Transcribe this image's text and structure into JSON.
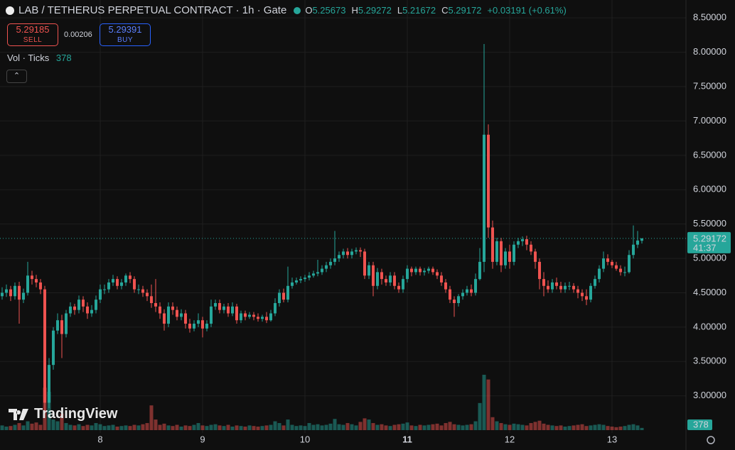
{
  "chart_data": {
    "type": "candlestick",
    "title": "LAB / TETHERUS PERPETUAL CONTRACT · 1h · Gate",
    "ohlc_labels": [
      "O",
      "H",
      "L",
      "C"
    ],
    "change": "+0.03191 (+0.61%)",
    "sell": {
      "price": 5.29185,
      "label": "SELL"
    },
    "spread": 0.00206,
    "buy": {
      "price": 5.29391,
      "label": "BUY"
    },
    "volume_label": "Vol · Ticks",
    "countdown": "41:37",
    "watermark": "TradingView",
    "up_color": "#26a69a",
    "down_color": "#ef5350",
    "ylim": [
      2.46,
      8.76
    ],
    "yticks": [
      {
        "value": 3,
        "label": "3.00000"
      },
      {
        "value": 3.5,
        "label": "3.50000"
      },
      {
        "value": 4,
        "label": "4.00000"
      },
      {
        "value": 4.5,
        "label": "4.50000"
      },
      {
        "value": 5,
        "label": "5.00000"
      },
      {
        "value": 5.5,
        "label": "5.50000"
      },
      {
        "value": 6,
        "label": "6.00000"
      },
      {
        "value": 6.5,
        "label": "6.50000"
      },
      {
        "value": 7,
        "label": "7.00000"
      },
      {
        "value": 7.5,
        "label": "7.50000"
      },
      {
        "value": 8,
        "label": "8.00000"
      },
      {
        "value": 8.5,
        "label": "8.50000"
      }
    ],
    "grid": true,
    "categories": [
      null,
      null,
      null,
      null,
      null,
      null,
      null,
      null,
      null,
      null,
      null,
      null,
      null,
      null,
      null,
      null,
      null,
      null,
      null,
      null,
      null,
      null,
      null,
      "8",
      null,
      null,
      null,
      null,
      null,
      null,
      null,
      null,
      null,
      null,
      null,
      null,
      null,
      null,
      null,
      null,
      null,
      null,
      null,
      null,
      null,
      null,
      null,
      "9",
      null,
      null,
      null,
      null,
      null,
      null,
      null,
      null,
      null,
      null,
      null,
      null,
      null,
      null,
      null,
      null,
      null,
      null,
      null,
      null,
      null,
      null,
      null,
      "10",
      null,
      null,
      null,
      null,
      null,
      null,
      null,
      null,
      null,
      null,
      null,
      null,
      null,
      null,
      null,
      null,
      null,
      null,
      null,
      null,
      null,
      null,
      null,
      "11",
      null,
      null,
      null,
      null,
      null,
      null,
      null,
      null,
      null,
      null,
      null,
      null,
      null,
      null,
      null,
      null,
      null,
      null,
      null,
      null,
      null,
      null,
      null,
      "12",
      null,
      null,
      null,
      null,
      null,
      null,
      null,
      null,
      null,
      null,
      null,
      null,
      null,
      null,
      null,
      null,
      null,
      null,
      null,
      null,
      null,
      null,
      null,
      "13",
      null,
      null,
      null,
      null,
      null,
      null,
      null
    ],
    "open": [
      4.45,
      4.5,
      4.55,
      4.45,
      4.6,
      4.4,
      4.5,
      4.75,
      4.7,
      4.65,
      4.55,
      2.9,
      3.45,
      3.95,
      4.1,
      3.9,
      4.2,
      4.3,
      4.25,
      4.4,
      4.3,
      4.2,
      4.25,
      4.4,
      4.55,
      4.55,
      4.65,
      4.7,
      4.6,
      4.65,
      4.75,
      4.7,
      4.55,
      4.55,
      4.5,
      4.45,
      4.35,
      4.3,
      4.2,
      4.05,
      4.3,
      4.25,
      4.15,
      4.2,
      4.05,
      3.98,
      4.05,
      4.1,
      3.98,
      4.05,
      4.3,
      4.35,
      4.25,
      4.3,
      4.2,
      4.3,
      4.1,
      4.2,
      4.15,
      4.18,
      4.15,
      4.12,
      4.15,
      4.1,
      4.2,
      4.35,
      4.5,
      4.4,
      4.6,
      4.65,
      4.68,
      4.7,
      4.72,
      4.75,
      4.78,
      4.8,
      4.85,
      4.9,
      4.95,
      5.0,
      5.05,
      5.1,
      5.05,
      5.1,
      5.12,
      5.1,
      4.75,
      4.9,
      4.6,
      4.8,
      4.7,
      4.65,
      4.75,
      4.6,
      4.55,
      4.7,
      4.85,
      4.8,
      4.85,
      4.8,
      4.82,
      4.85,
      4.8,
      4.75,
      4.65,
      4.55,
      4.4,
      4.35,
      4.45,
      4.5,
      4.55,
      4.5,
      4.7,
      4.95,
      6.8,
      5.45,
      4.95,
      5.25,
      4.9,
      5.1,
      4.95,
      5.2,
      5.25,
      5.28,
      5.2,
      5.1,
      4.95,
      4.7,
      4.6,
      4.55,
      4.65,
      4.6,
      4.55,
      4.6,
      4.6,
      4.55,
      4.5,
      4.45,
      4.4,
      4.6,
      4.7,
      4.85,
      5.0,
      4.95,
      4.9,
      4.85,
      4.8,
      4.8,
      5.05,
      5.2,
      5.25673
    ],
    "high": [
      4.58,
      4.62,
      4.6,
      4.65,
      4.66,
      4.56,
      4.95,
      4.82,
      4.76,
      4.7,
      4.6,
      3.55,
      4.0,
      4.2,
      4.18,
      4.25,
      4.36,
      4.34,
      4.46,
      4.45,
      4.36,
      4.32,
      4.46,
      4.62,
      4.62,
      4.7,
      4.76,
      4.74,
      4.7,
      4.78,
      4.8,
      4.74,
      4.62,
      4.6,
      4.55,
      4.62,
      4.7,
      4.36,
      4.26,
      4.36,
      4.36,
      4.3,
      4.26,
      4.25,
      4.12,
      4.1,
      4.2,
      4.15,
      4.1,
      4.4,
      4.4,
      4.4,
      4.34,
      4.35,
      4.36,
      4.34,
      4.24,
      4.24,
      4.22,
      4.22,
      4.2,
      4.18,
      4.22,
      4.25,
      4.42,
      4.55,
      4.56,
      4.88,
      4.72,
      4.72,
      4.74,
      4.76,
      4.8,
      4.82,
      4.98,
      4.9,
      4.95,
      5.0,
      5.4,
      5.1,
      5.14,
      5.15,
      5.14,
      5.16,
      5.16,
      5.14,
      4.95,
      4.95,
      4.86,
      4.85,
      4.75,
      4.8,
      4.8,
      4.65,
      4.75,
      4.9,
      4.88,
      4.88,
      4.88,
      4.86,
      4.88,
      4.88,
      4.84,
      4.8,
      4.7,
      4.6,
      4.45,
      4.48,
      4.55,
      4.6,
      4.62,
      4.78,
      5.15,
      8.12,
      6.95,
      5.55,
      5.3,
      5.3,
      5.15,
      5.2,
      5.25,
      5.3,
      5.32,
      5.33,
      5.25,
      5.14,
      5.0,
      4.8,
      4.68,
      4.7,
      4.72,
      4.66,
      4.65,
      4.66,
      4.64,
      4.6,
      4.55,
      4.55,
      4.64,
      4.75,
      4.9,
      5.1,
      5.06,
      4.98,
      4.95,
      4.9,
      4.88,
      5.12,
      5.48,
      5.4,
      5.29272
    ],
    "low": [
      4.4,
      4.44,
      4.38,
      4.4,
      4.05,
      4.35,
      4.46,
      4.62,
      4.58,
      4.48,
      2.75,
      2.82,
      3.38,
      3.9,
      3.55,
      3.85,
      4.15,
      4.18,
      4.2,
      4.22,
      4.12,
      4.15,
      4.2,
      4.35,
      4.48,
      4.5,
      4.6,
      4.55,
      4.55,
      4.6,
      4.64,
      4.5,
      4.48,
      4.44,
      4.38,
      4.28,
      4.22,
      4.12,
      3.95,
      4.0,
      4.18,
      4.1,
      4.1,
      3.98,
      3.92,
      3.94,
      4.0,
      3.85,
      3.94,
      4.0,
      4.25,
      4.2,
      4.2,
      4.15,
      4.16,
      4.05,
      4.06,
      4.1,
      4.12,
      4.1,
      4.08,
      4.08,
      4.06,
      4.08,
      4.16,
      4.3,
      4.36,
      4.36,
      4.56,
      4.62,
      4.64,
      4.66,
      4.68,
      4.72,
      4.74,
      4.76,
      4.8,
      4.85,
      4.9,
      4.95,
      5.0,
      5.0,
      5.0,
      5.06,
      5.02,
      4.7,
      4.7,
      4.45,
      4.55,
      4.62,
      4.6,
      4.6,
      4.55,
      4.5,
      4.5,
      4.65,
      4.74,
      4.76,
      4.75,
      4.75,
      4.78,
      4.76,
      4.7,
      4.6,
      4.5,
      4.35,
      4.15,
      4.3,
      4.4,
      4.46,
      4.45,
      4.46,
      4.68,
      4.8,
      5.3,
      4.85,
      4.9,
      4.8,
      4.85,
      4.85,
      4.9,
      5.15,
      5.18,
      5.12,
      5.05,
      4.85,
      4.55,
      4.45,
      4.5,
      4.5,
      4.55,
      4.5,
      4.5,
      4.54,
      4.5,
      4.42,
      4.38,
      4.32,
      4.36,
      4.56,
      4.65,
      4.8,
      4.9,
      4.86,
      4.82,
      4.75,
      4.74,
      4.78,
      5.0,
      5.15,
      5.21672
    ],
    "close": [
      4.5,
      4.55,
      4.45,
      4.6,
      4.4,
      4.5,
      4.75,
      4.7,
      4.65,
      4.55,
      2.9,
      3.45,
      3.95,
      4.1,
      3.9,
      4.2,
      4.3,
      4.25,
      4.4,
      4.3,
      4.2,
      4.25,
      4.4,
      4.55,
      4.55,
      4.65,
      4.7,
      4.6,
      4.65,
      4.75,
      4.7,
      4.55,
      4.55,
      4.5,
      4.45,
      4.35,
      4.3,
      4.2,
      4.05,
      4.3,
      4.25,
      4.15,
      4.2,
      4.05,
      3.98,
      4.05,
      4.1,
      3.98,
      4.05,
      4.3,
      4.35,
      4.25,
      4.3,
      4.2,
      4.3,
      4.1,
      4.2,
      4.15,
      4.18,
      4.15,
      4.12,
      4.15,
      4.1,
      4.2,
      4.35,
      4.5,
      4.4,
      4.6,
      4.65,
      4.68,
      4.7,
      4.72,
      4.75,
      4.78,
      4.8,
      4.85,
      4.9,
      4.95,
      5.0,
      5.05,
      5.1,
      5.05,
      5.1,
      5.12,
      5.1,
      4.75,
      4.9,
      4.6,
      4.8,
      4.7,
      4.65,
      4.75,
      4.6,
      4.55,
      4.7,
      4.85,
      4.8,
      4.85,
      4.8,
      4.82,
      4.85,
      4.8,
      4.75,
      4.65,
      4.55,
      4.4,
      4.35,
      4.45,
      4.5,
      4.55,
      4.5,
      4.7,
      4.95,
      6.8,
      5.45,
      4.95,
      5.25,
      4.9,
      5.1,
      4.95,
      5.2,
      5.25,
      5.28,
      5.2,
      5.1,
      4.95,
      4.7,
      4.6,
      4.55,
      4.65,
      4.6,
      4.55,
      4.6,
      4.6,
      4.55,
      4.5,
      4.45,
      4.4,
      4.6,
      4.7,
      4.85,
      5.0,
      4.95,
      4.9,
      4.85,
      4.8,
      4.8,
      5.05,
      5.2,
      5.26,
      5.29172
    ],
    "volume": [
      800,
      600,
      700,
      900,
      1200,
      800,
      1500,
      1100,
      1300,
      900,
      7200,
      6500,
      1800,
      1500,
      2800,
      1200,
      900,
      800,
      1000,
      700,
      900,
      800,
      1200,
      1000,
      700,
      800,
      900,
      600,
      700,
      800,
      700,
      900,
      800,
      1000,
      1200,
      4200,
      1800,
      900,
      1100,
      800,
      700,
      900,
      600,
      800,
      700,
      900,
      1200,
      800,
      700,
      900,
      1000,
      800,
      700,
      900,
      600,
      800,
      700,
      600,
      800,
      700,
      600,
      700,
      800,
      900,
      1500,
      1200,
      800,
      1800,
      900,
      700,
      800,
      700,
      1200,
      900,
      1000,
      800,
      900,
      1100,
      1900,
      1000,
      900,
      1200,
      1000,
      800,
      1400,
      2000,
      1800,
      1200,
      900,
      1000,
      800,
      700,
      900,
      1000,
      1100,
      1300,
      800,
      700,
      900,
      800,
      900,
      1000,
      1100,
      800,
      1200,
      1400,
      1000,
      900,
      800,
      900,
      1000,
      1500,
      4600,
      9400,
      8600,
      2200,
      1500,
      1200,
      1000,
      900,
      1100,
      1000,
      900,
      800,
      1200,
      1400,
      1600,
      1100,
      900,
      800,
      700,
      800,
      600,
      700,
      800,
      900,
      1000,
      700,
      800,
      900,
      1000,
      900,
      700,
      600,
      500,
      600,
      700,
      900,
      1000,
      800,
      378
    ]
  }
}
